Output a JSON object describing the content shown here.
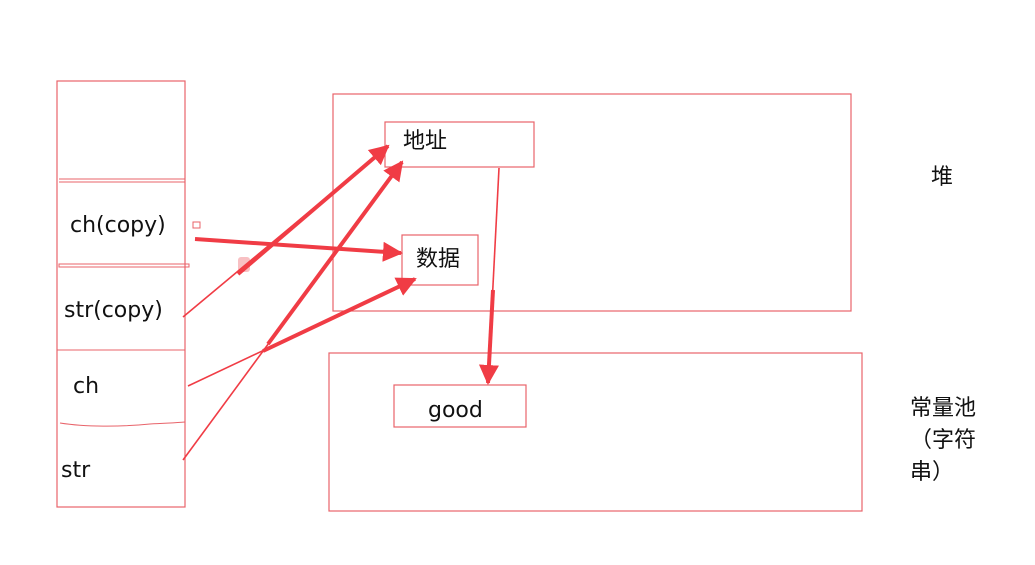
{
  "colors": {
    "stroke": "#e8636a",
    "arrow": "#f03c45",
    "text": "#111111"
  },
  "stack": {
    "cells": [
      "",
      "ch(copy)",
      "str(copy)",
      "ch",
      "str"
    ]
  },
  "heap": {
    "label": "堆",
    "address_box": "地址",
    "data_box": "数据"
  },
  "constant_pool": {
    "label_line1": "常量池",
    "label_line2": "（字符",
    "label_line3": "串）",
    "string_box": "good"
  }
}
